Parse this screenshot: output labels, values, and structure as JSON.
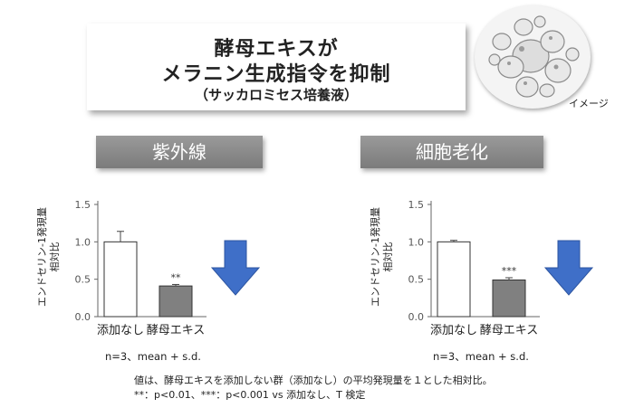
{
  "title": {
    "line1": "酵母エキスが",
    "line2": "メラニン生成指令を抑制",
    "line3": "（サッカロミセス培養液）"
  },
  "image_caption": "イメージ",
  "banners": {
    "left": "紫外線",
    "right": "細胞老化"
  },
  "chart_data": [
    {
      "type": "bar",
      "title": "紫外線",
      "categories": [
        "添加なし",
        "酵母エキス"
      ],
      "values": [
        1.0,
        0.41
      ],
      "errors": [
        0.14,
        0.02
      ],
      "significance": [
        "",
        "**"
      ],
      "bar_colors": [
        "#ffffff",
        "#808080"
      ],
      "ylabel": "エンドセリン-1発現量 相対比",
      "yticks": [
        "0.0",
        "0.5",
        "1.0",
        "1.5"
      ],
      "ylim": [
        0,
        1.5
      ],
      "arrow_color": "#3f6fc8"
    },
    {
      "type": "bar",
      "title": "細胞老化",
      "categories": [
        "添加なし",
        "酵母エキス"
      ],
      "values": [
        1.0,
        0.49
      ],
      "errors": [
        0.02,
        0.03
      ],
      "significance": [
        "",
        "***"
      ],
      "bar_colors": [
        "#ffffff",
        "#808080"
      ],
      "ylabel": "エンドセリン-1発現量 相対比",
      "yticks": [
        "0.0",
        "0.5",
        "1.0",
        "1.5"
      ],
      "ylim": [
        0,
        1.5
      ],
      "arrow_color": "#3f6fc8"
    }
  ],
  "footnotes": {
    "left": "n=3、mean + s.d.",
    "right": "n=3、mean + s.d."
  },
  "bottom_notes": {
    "line1": "値は、酵母エキスを添加しない群（添加なし）の平均発現量を１とした相対比。",
    "line2": "**：p<0.01、***：p<0.001 vs 添加なし、T 検定"
  }
}
